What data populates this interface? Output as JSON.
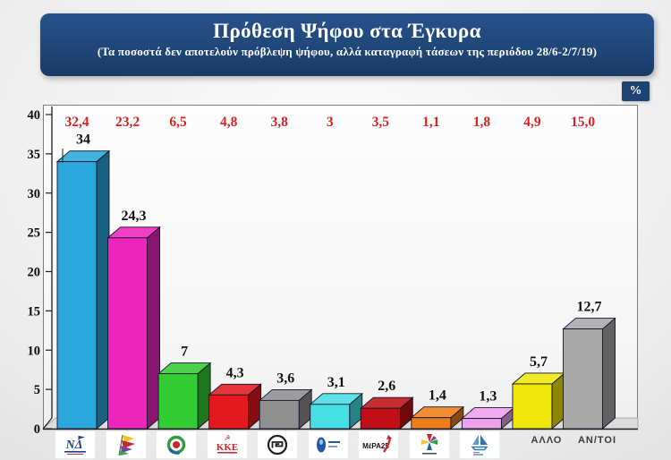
{
  "header": {
    "title": "Πρόθεση Ψήφου στα Έγκυρα",
    "subtitle": "(Τα ποσοστά δεν αποτελούν πρόβλεψη ψήφου, αλλά καταγραφή τάσεων της περιόδου 28/6-2/7/19)",
    "bg_color": "#1d4372",
    "text_color": "#ffffff"
  },
  "percent_badge": {
    "label": "%"
  },
  "chart_data": {
    "type": "bar",
    "title": "Πρόθεση Ψήφου στα Έγκυρα",
    "subtitle": "(Τα ποσοστά δεν αποτελούν πρόβλεψη ψήφου, αλλά καταγραφή τάσεων της περιόδου 28/6-2/7/19)",
    "unit": "%",
    "ylim": [
      0,
      40
    ],
    "yticks": [
      0,
      5,
      10,
      15,
      20,
      25,
      30,
      35,
      40
    ],
    "grid": false,
    "legend_position": "none",
    "style": "3d-bars",
    "black_label_color": "#101010",
    "red_row_color": "#d92222",
    "axis_color": "#1c1c1c",
    "bars": [
      {
        "category": "ΝΔ",
        "logo": "nd-logo",
        "value": 34,
        "value_label": "34",
        "red_value": 32.4,
        "red_label": "32,4",
        "color": "#2aa7dd"
      },
      {
        "category": "ΣΥΡΙΖΑ",
        "logo": "syriza-flags-logo",
        "value": 24.3,
        "value_label": "24,3",
        "red_value": 23.2,
        "red_label": "23,2",
        "color": "#ee25bd"
      },
      {
        "category": "ΚΙΝΑΛ",
        "logo": "kinal-circle-logo",
        "value": 7,
        "value_label": "7",
        "red_value": 6.5,
        "red_label": "6,5",
        "color": "#33cc33"
      },
      {
        "category": "ΚΚΕ",
        "logo": "kke-logo",
        "value": 4.3,
        "value_label": "4,3",
        "red_value": 4.8,
        "red_label": "4,8",
        "color": "#e4191f"
      },
      {
        "category": "Χρυσή Αυγή",
        "logo": "wreath-meander-logo",
        "value": 3.6,
        "value_label": "3,6",
        "red_value": 3.8,
        "red_label": "3,8",
        "color": "#8f8f8f"
      },
      {
        "category": "Ελληνική Λύση",
        "logo": "elliniki-lysi-logo",
        "value": 3.1,
        "value_label": "3,1",
        "red_value": 3,
        "red_label": "3",
        "color": "#45dfe4"
      },
      {
        "category": "ΜέΡΑ25",
        "logo": "mera25-logo",
        "value": 2.6,
        "value_label": "2,6",
        "red_value": 3.5,
        "red_label": "3,5",
        "color": "#c01015"
      },
      {
        "category": "",
        "logo": "multicolor-pinwheel-logo",
        "value": 1.4,
        "value_label": "1,4",
        "red_value": 1.1,
        "red_label": "1,1",
        "color": "#ef7d1a"
      },
      {
        "category": "",
        "logo": "sailboat-logo",
        "value": 1.3,
        "value_label": "1,3",
        "red_value": 1.8,
        "red_label": "1,8",
        "color": "#efa0ec"
      },
      {
        "category": "ΑΛΛΟ",
        "logo": null,
        "value": 5.7,
        "value_label": "5,7",
        "red_value": 4.9,
        "red_label": "4,9",
        "color": "#efe70b"
      },
      {
        "category": "ΑΝ/ΤΟΙ",
        "logo": null,
        "value": 12.7,
        "value_label": "12,7",
        "red_value": 15.0,
        "red_label": "15,0",
        "color": "#a9a9a9"
      }
    ]
  }
}
